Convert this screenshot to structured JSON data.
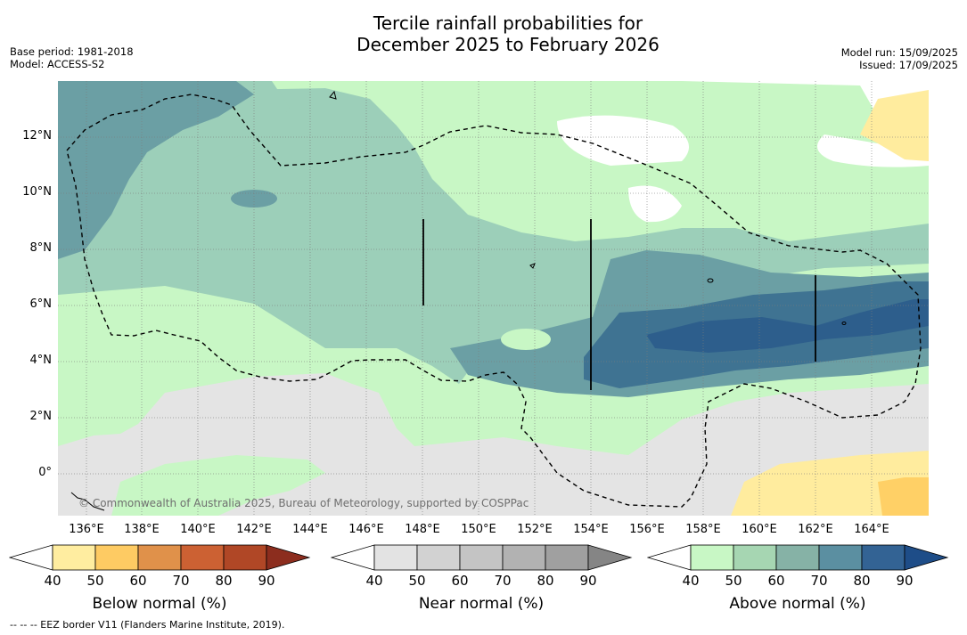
{
  "title": {
    "line1": "Tercile rainfall probabilities for",
    "line2": "December 2025 to February 2026"
  },
  "meta_left": {
    "base_period": "Base period: 1981-2018",
    "model": "Model: ACCESS-S2"
  },
  "meta_right": {
    "model_run": "Model run: 15/09/2025",
    "issued": "Issued: 17/09/2025"
  },
  "map": {
    "lat_labels": [
      "12°N",
      "10°N",
      "8°N",
      "6°N",
      "4°N",
      "2°N",
      "0°"
    ],
    "lon_labels": [
      "136°E",
      "138°E",
      "140°E",
      "142°E",
      "144°E",
      "146°E",
      "148°E",
      "150°E",
      "152°E",
      "154°E",
      "156°E",
      "158°E",
      "160°E",
      "162°E",
      "164°E"
    ],
    "copyright": "© Commonwealth of Australia 2025, Bureau of Meteorology, supported by COSPPac",
    "colors": {
      "ocean_above_50": "#c8f7c5",
      "ocean_above_60": "#9ccfb9",
      "ocean_above_70": "#6b9fa4",
      "ocean_above_80": "#3f7392",
      "ocean_above_90": "#2d5e8c",
      "near_normal": "#e4e4e4",
      "below_normal_50": "#ffec9e",
      "below_normal_60": "#ffd066",
      "white": "#ffffff"
    }
  },
  "colorbars": {
    "ticks": [
      "40",
      "50",
      "60",
      "70",
      "80",
      "90"
    ],
    "below": {
      "label": "Below normal (%)",
      "colors": [
        "#ffffff",
        "#ffeda0",
        "#fecb63",
        "#e0914a",
        "#cc6133",
        "#b04726",
        "#8c2d1e"
      ]
    },
    "near": {
      "label": "Near normal (%)",
      "colors": [
        "#ffffff",
        "#e3e3e3",
        "#d2d2d2",
        "#c4c4c4",
        "#b2b2b2",
        "#a0a0a0",
        "#858585"
      ]
    },
    "above": {
      "label": "Above normal (%)",
      "colors": [
        "#ffffff",
        "#c8f7c5",
        "#a6d6b2",
        "#86b2a6",
        "#5b8fa1",
        "#336394",
        "#1e4d88"
      ]
    }
  },
  "footnote": "--  --  -- EEZ border V11 (Flanders Marine Institute, 2019)."
}
